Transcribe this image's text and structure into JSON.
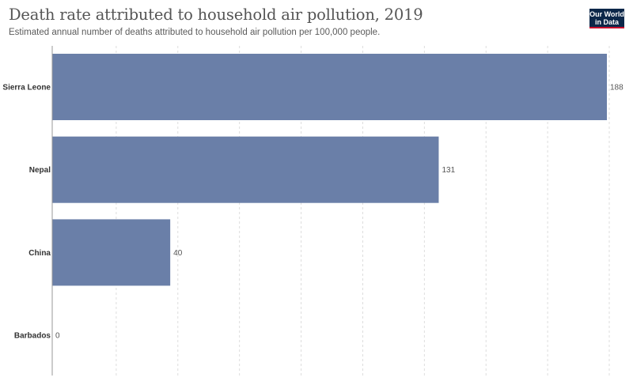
{
  "header": {
    "title": "Death rate attributed to household air pollution, 2019",
    "subtitle": "Estimated annual number of deaths attributed to household air pollution per 100,000 people.",
    "logo_line1": "Our World",
    "logo_line2": "in Data"
  },
  "colors": {
    "bar": "#6a7fa8",
    "gridline": "#dddddd",
    "axis": "#999999"
  },
  "chart_data": {
    "type": "bar",
    "orientation": "horizontal",
    "categories": [
      "Sierra Leone",
      "Nepal",
      "China",
      "Barbados"
    ],
    "values": [
      188,
      131,
      40,
      0
    ],
    "value_labels": [
      "188",
      "131",
      "40",
      "0"
    ],
    "xlim": [
      0,
      188
    ],
    "grid": true,
    "legend": "none"
  }
}
